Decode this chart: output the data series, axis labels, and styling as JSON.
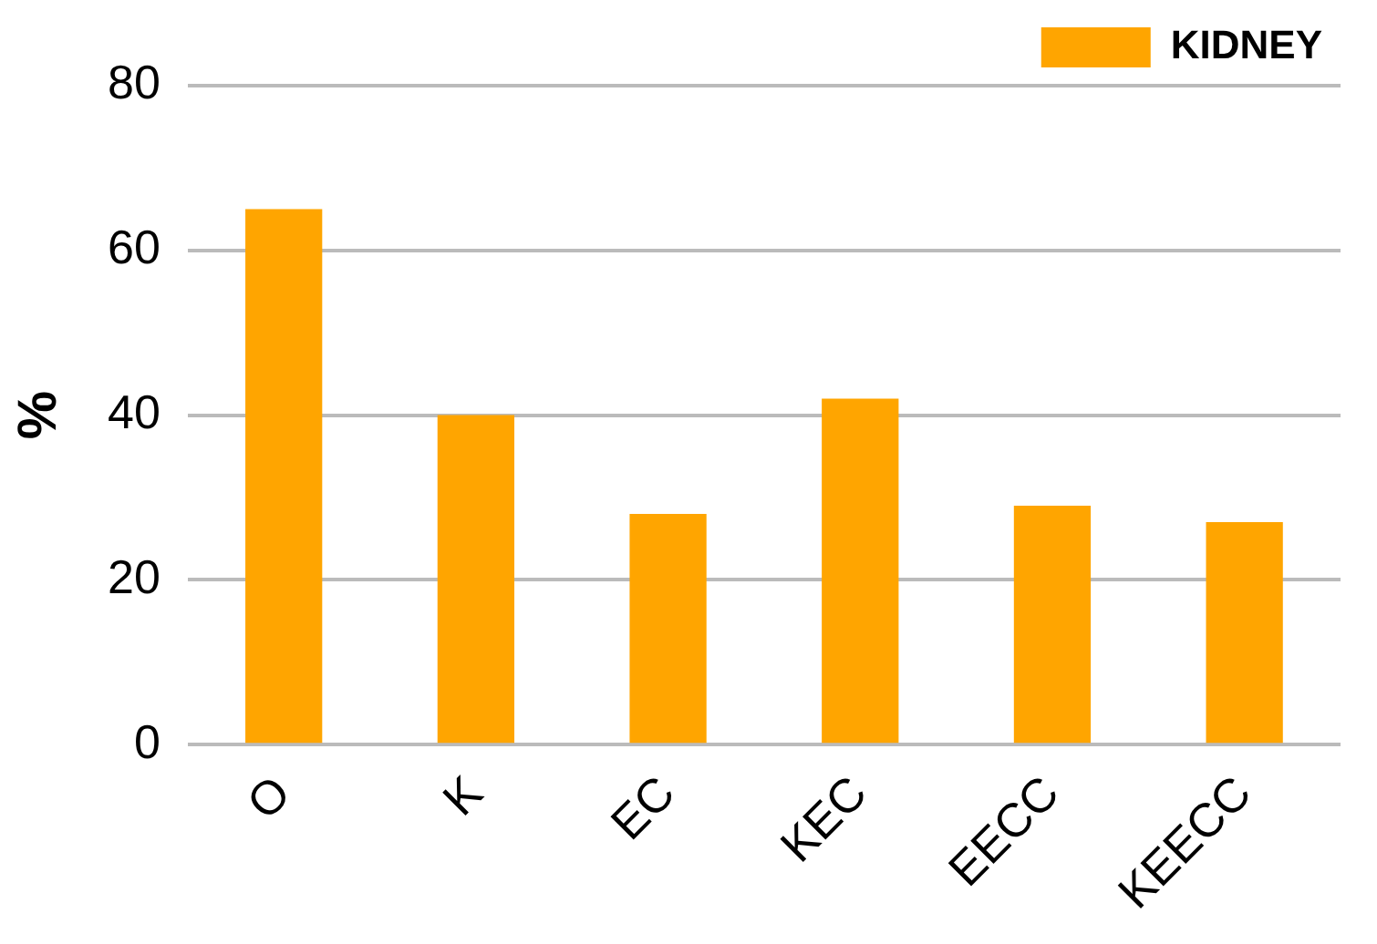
{
  "chart_data": {
    "type": "bar",
    "ylabel": "%",
    "categories": [
      "O",
      "K",
      "EC",
      "KEC",
      "EECC",
      "KEECC"
    ],
    "series": [
      {
        "name": "KIDNEY",
        "color": "#ffa500",
        "values": [
          65,
          40,
          28,
          42,
          29,
          27
        ]
      }
    ],
    "ylim": [
      0,
      80
    ],
    "yticks": [
      0,
      20,
      40,
      60,
      80
    ],
    "grid": "y",
    "legend": "top right"
  }
}
